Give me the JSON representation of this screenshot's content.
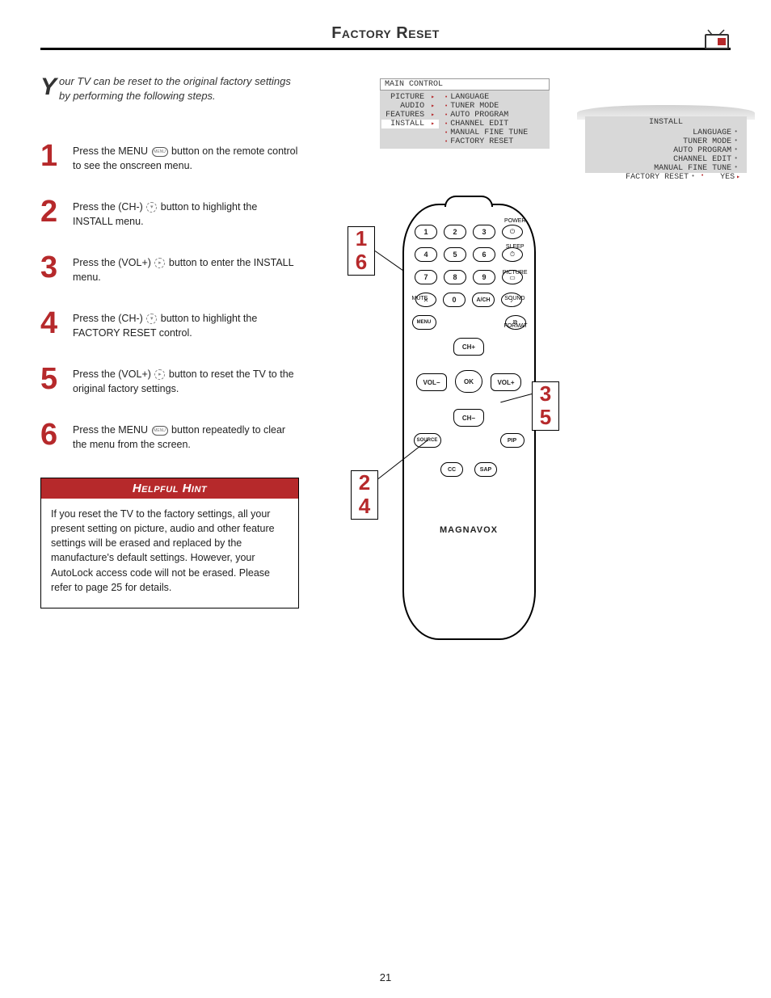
{
  "page": {
    "title": "Factory Reset",
    "number": "21"
  },
  "intro": {
    "dropcap": "Y",
    "text": "our TV can be reset to the original factory settings by performing the following steps."
  },
  "steps": [
    {
      "num": "1",
      "text_a": "Press the MENU ",
      "icon": "MENU",
      "text_b": " button on the remote control to see the onscreen menu."
    },
    {
      "num": "2",
      "text_a": "Press the (CH-) ",
      "icon": "▾",
      "text_b": " button to highlight the INSTALL menu."
    },
    {
      "num": "3",
      "text_a": "Press the (VOL+) ",
      "icon": "▸",
      "text_b": " button to enter the INSTALL menu."
    },
    {
      "num": "4",
      "text_a": "Press the (CH-) ",
      "icon": "▾",
      "text_b": " button to highlight the FACTORY RESET control."
    },
    {
      "num": "5",
      "text_a": "Press the (VOL+) ",
      "icon": "▸",
      "text_b": " button to reset the TV to the original factory settings."
    },
    {
      "num": "6",
      "text_a": "Press the MENU ",
      "icon": "MENU",
      "text_b": " button repeatedly to clear the menu from the screen."
    }
  ],
  "hint": {
    "title": "Helpful Hint",
    "body": "If you reset the TV to the factory settings, all your present setting on picture, audio and other feature settings will be erased and replaced by the manufacture's default settings. However, your AutoLock access code will not be erased. Please refer to page 25 for details."
  },
  "menu_main": {
    "header": "MAIN CONTROL",
    "left": [
      "PICTURE",
      "AUDIO",
      "FEATURES",
      "INSTALL"
    ],
    "right": [
      "LANGUAGE",
      "TUNER MODE",
      "AUTO PROGRAM",
      "CHANNEL EDIT",
      "MANUAL FINE TUNE",
      "FACTORY RESET"
    ],
    "highlight_left_index": 3
  },
  "menu_install": {
    "title": "INSTALL",
    "items": [
      "LANGUAGE",
      "TUNER MODE",
      "AUTO PROGRAM",
      "CHANNEL EDIT",
      "MANUAL FINE TUNE",
      "FACTORY RESET"
    ],
    "highlight_index": 5,
    "yes_label": "YES"
  },
  "remote": {
    "labels": {
      "power": "POWER",
      "sleep": "SLEEP",
      "picture": "PICTURE",
      "sound": "SOUND",
      "mute": "MUTE",
      "format": "FORMAT"
    },
    "num_row1": [
      "1",
      "2",
      "3"
    ],
    "power_btn": "⏻",
    "num_row2": [
      "4",
      "5",
      "6"
    ],
    "sleep_btn": "⏱",
    "num_row3": [
      "7",
      "8",
      "9"
    ],
    "picture_btn": "▭",
    "row4": {
      "mute": "✕",
      "zero": "0",
      "ach": "A/CH",
      "sound": "♪"
    },
    "side_left": "MENU",
    "side_right_format": "⧉",
    "nav": {
      "ch_plus": "CH+",
      "ch_minus": "CH−",
      "vol_minus": "VOL−",
      "vol_plus": "VOL+",
      "ok": "OK"
    },
    "source": "SOURCE",
    "pip": "PIP",
    "cc": "CC",
    "sap": "SAP",
    "brand": "MAGNAVOX"
  },
  "callouts": {
    "box_a": [
      "1",
      "6"
    ],
    "box_b": [
      "3",
      "5"
    ],
    "box_c": [
      "2",
      "4"
    ]
  }
}
